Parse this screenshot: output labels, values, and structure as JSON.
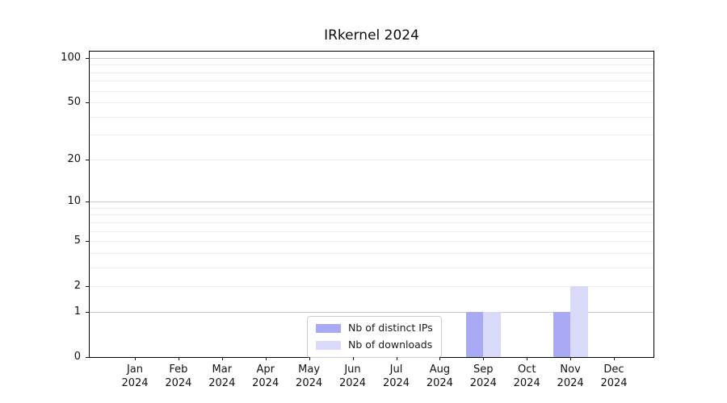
{
  "chart_data": {
    "type": "bar",
    "title": "IRkernel 2024",
    "categories": [
      "Jan",
      "Feb",
      "Mar",
      "Apr",
      "May",
      "Jun",
      "Jul",
      "Aug",
      "Sep",
      "Oct",
      "Nov",
      "Dec"
    ],
    "category_year": "2024",
    "series": [
      {
        "name": "Nb of distinct IPs",
        "color": "#a9a9f4",
        "values": [
          0,
          0,
          0,
          0,
          0,
          0,
          0,
          0,
          1,
          0,
          1,
          0
        ]
      },
      {
        "name": "Nb of downloads",
        "color": "#d9d9fa",
        "values": [
          0,
          0,
          0,
          0,
          0,
          0,
          0,
          0,
          1,
          0,
          2,
          0
        ]
      }
    ],
    "yscale": "log1p",
    "ylim": [
      0,
      110
    ],
    "yticks": [
      0,
      1,
      2,
      5,
      10,
      20,
      50,
      100
    ],
    "grid_major": [
      1,
      10,
      100
    ],
    "grid_minor": [
      2,
      3,
      4,
      5,
      6,
      7,
      8,
      9,
      20,
      30,
      40,
      50,
      60,
      70,
      80,
      90
    ],
    "legend_position": "inside lower-center-left",
    "xlabel": "",
    "ylabel": ""
  }
}
